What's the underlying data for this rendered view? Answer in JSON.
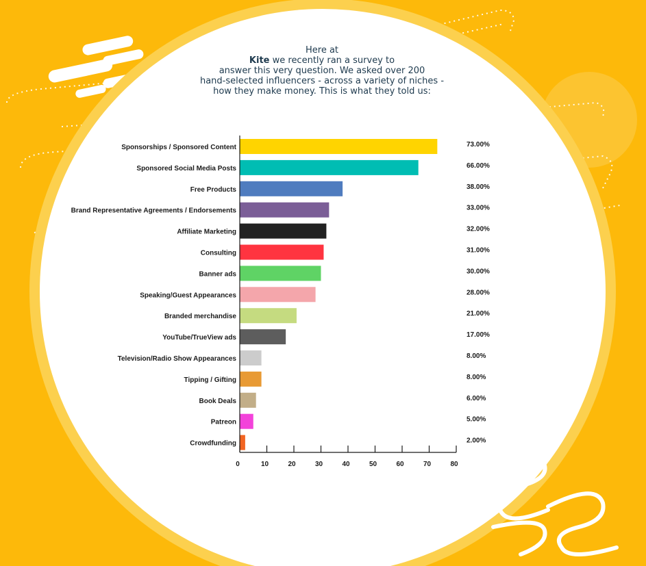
{
  "intro": {
    "line1": "Here at",
    "brand": "Kite",
    "line2_rest": " we recently ran a survey to",
    "line3": "answer this very question. We asked over 200",
    "line4": "hand-selected influencers - across a variety of niches -",
    "line5": "how they make money. This is what they told us:"
  },
  "colors": {
    "background": "#fdb90a",
    "panel": "#ffffff",
    "text": "#1e3a4e"
  },
  "chart_data": {
    "type": "bar",
    "orientation": "horizontal",
    "categories": [
      "Sponsorships / Sponsored Content",
      "Sponsored Social Media Posts",
      "Free Products",
      "Brand Representative Agreements / Endorsements",
      "Affiliate Marketing",
      "Consulting",
      "Banner ads",
      "Speaking/Guest Appearances",
      "Branded merchandise",
      "YouTube/TrueView ads",
      "Television/Radio Show Appearances",
      "Tipping / Gifting",
      "Book Deals",
      "Patreon",
      "Crowdfunding"
    ],
    "values": [
      73,
      66,
      38,
      33,
      32,
      31,
      30,
      28,
      21,
      17,
      8,
      8,
      6,
      5,
      2
    ],
    "value_labels": [
      "73.00%",
      "66.00%",
      "38.00%",
      "33.00%",
      "32.00%",
      "31.00%",
      "30.00%",
      "28.00%",
      "21.00%",
      "17.00%",
      "8.00%",
      "8.00%",
      "6.00%",
      "5.00%",
      "2.00%"
    ],
    "colors": [
      "#ffd400",
      "#00bdb3",
      "#4f7cbf",
      "#7b5e97",
      "#222222",
      "#ff3440",
      "#5fd365",
      "#f4a6ab",
      "#c5db80",
      "#5d5d5d",
      "#cccccc",
      "#e89a34",
      "#c2ae88",
      "#f342da",
      "#f26522"
    ],
    "xticks": [
      0,
      10,
      20,
      30,
      40,
      50,
      60,
      70,
      80
    ],
    "xlim": [
      0,
      80
    ],
    "title": "",
    "xlabel": "",
    "ylabel": "",
    "grid": false,
    "legend": "none"
  }
}
